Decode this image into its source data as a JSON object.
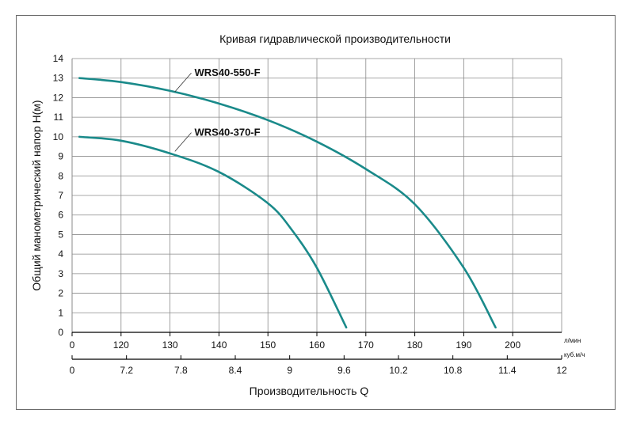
{
  "chart_data": {
    "type": "line",
    "title": "Кривая гидравлической производительности",
    "xlabel": "Производительность Q",
    "ylabel": "Общий манометрический напор H(м)",
    "xlim": [
      0,
      200
    ],
    "ylim": [
      0,
      14
    ],
    "grid": true,
    "y_ticks": [
      "0",
      "1",
      "2",
      "3",
      "4",
      "5",
      "6",
      "7",
      "8",
      "9",
      "10",
      "11",
      "12",
      "13",
      "14"
    ],
    "x_axis_primary": {
      "unit": "л/мин",
      "ticks": [
        {
          "x": 0,
          "label": "0"
        },
        {
          "x": 20,
          "label": "120"
        },
        {
          "x": 40,
          "label": "130"
        },
        {
          "x": 60,
          "label": "140"
        },
        {
          "x": 80,
          "label": "150"
        },
        {
          "x": 100,
          "label": "160"
        },
        {
          "x": 120,
          "label": "170"
        },
        {
          "x": 140,
          "label": "180"
        },
        {
          "x": 160,
          "label": "190"
        },
        {
          "x": 180,
          "label": "200"
        }
      ]
    },
    "x_axis_secondary": {
      "unit": "куб.м/ч",
      "labels": [
        "0",
        "7.2",
        "7.8",
        "8.4",
        "9",
        "9.6",
        "10.2",
        "10.8",
        "11.4",
        "12"
      ]
    },
    "series": [
      {
        "name": "WRS40-550-F",
        "color": "#1a8a8a",
        "label_at": [
          50,
          13.1
        ],
        "x": [
          3,
          20,
          40,
          60,
          80,
          100,
          120,
          140,
          160,
          173
        ],
        "y": [
          13.0,
          12.8,
          12.35,
          11.7,
          10.85,
          9.75,
          8.35,
          6.55,
          3.3,
          0.25
        ]
      },
      {
        "name": "WRS40-370-F",
        "color": "#1a8a8a",
        "label_at": [
          50,
          10.05
        ],
        "x": [
          3,
          20,
          40,
          60,
          80,
          90,
          100,
          112
        ],
        "y": [
          10.0,
          9.8,
          9.15,
          8.2,
          6.6,
          5.2,
          3.3,
          0.25
        ]
      }
    ]
  }
}
